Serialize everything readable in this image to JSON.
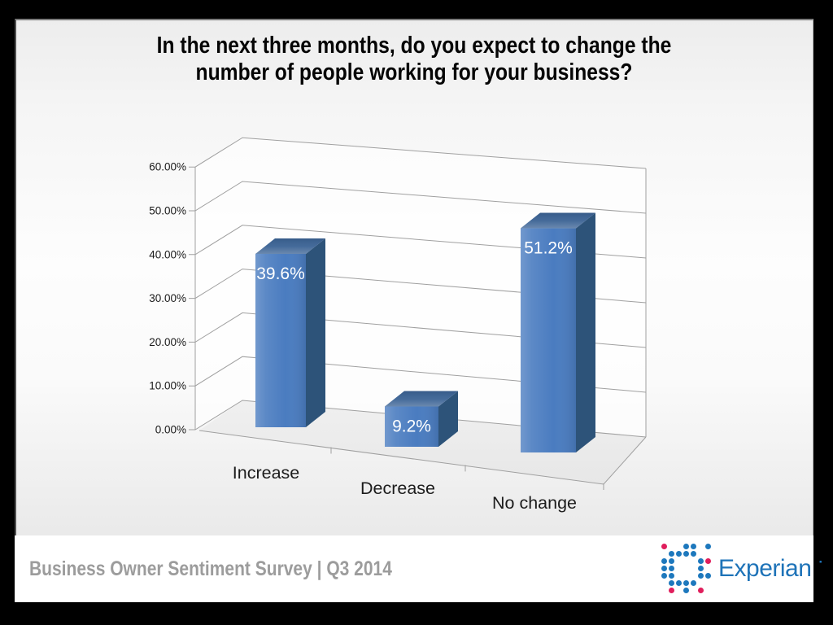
{
  "window": {
    "frame_color": "#000000"
  },
  "title": {
    "line1": "In the next three months, do you expect to change the",
    "line2": "number of people working for your business?"
  },
  "footer": {
    "survey_label": "Business Owner Sentiment Survey | Q3 2014",
    "text_color": "#9c9c9c"
  },
  "logo": {
    "wordmark": "Experian",
    "trademark_dot": "·",
    "text_color": "#1e73b8",
    "dot_blue": "#1d78bd",
    "dot_red": "#e01e5c",
    "dot_rows": [
      "r..bb.b",
      ".bbbb..",
      "bb...br",
      "bb...b.",
      "bb...bb",
      ".bbbb..",
      ".r.b.r."
    ]
  },
  "chart_data": {
    "type": "bar",
    "projection": "3d-column-perspective",
    "title": "In the next three months, do you expect to change the number of people working for your business?",
    "categories": [
      "Increase",
      "Decrease",
      "No change"
    ],
    "values": [
      39.6,
      9.2,
      51.2
    ],
    "data_labels": [
      "39.6%",
      "9.2%",
      "51.2%"
    ],
    "unit": "%",
    "ylim": [
      0,
      60
    ],
    "ytick_step": 10,
    "yticks": [
      {
        "value": 0,
        "label": "0.00%"
      },
      {
        "value": 10,
        "label": "10.00%"
      },
      {
        "value": 20,
        "label": "20.00%"
      },
      {
        "value": 30,
        "label": "30.00%"
      },
      {
        "value": 40,
        "label": "40.00%"
      },
      {
        "value": 50,
        "label": "50.00%"
      },
      {
        "value": 60,
        "label": "60.00%"
      }
    ],
    "legend": "none",
    "grid": true,
    "colors": {
      "bar_front": "#4a7cc0",
      "bar_side": "#2d5379",
      "bar_top": "#3a6294",
      "gridline": "#a0a0a0",
      "value_label": "#ffffff",
      "category_label": "#1c1c1c",
      "tick_label": "#1a1a1a"
    }
  }
}
